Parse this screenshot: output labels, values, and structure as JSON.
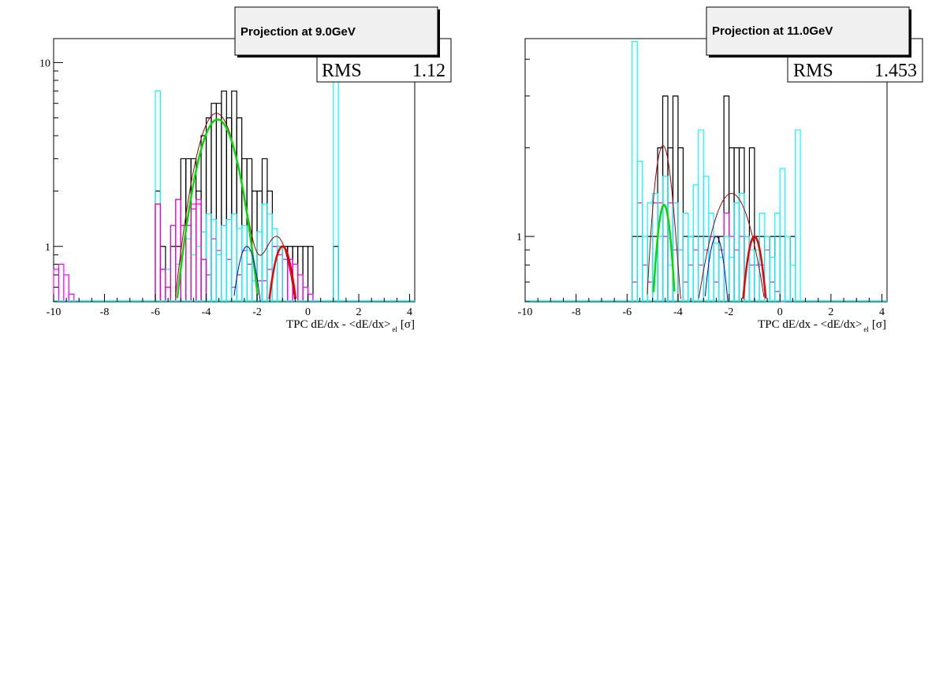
{
  "chart_data": [
    {
      "type": "histogram",
      "title": "Projection at 9.0GeV",
      "xlabel": "TPC dE/dx - <dE/dx>",
      "xlabel_sub": "el",
      "xlabel_unit": "[σ]",
      "xlim": [
        -10,
        4.2
      ],
      "ylim": [
        0.5,
        13.5
      ],
      "yscale": "log",
      "xticks": [
        -10,
        -8,
        -6,
        -4,
        -2,
        0,
        2,
        4
      ],
      "yticks": [
        1,
        10
      ],
      "stats": {
        "label": "RMS",
        "value": "1.12"
      },
      "bin_width": 0.2,
      "series": [
        {
          "color": "#000000",
          "x": [
            -6.0,
            -5.8,
            -5.4,
            -5.2,
            -5.0,
            -4.8,
            -4.6,
            -4.4,
            -4.2,
            -4.0,
            -3.8,
            -3.6,
            -3.4,
            -3.2,
            -3.0,
            -2.8,
            -2.6,
            -2.4,
            -2.2,
            -2.0,
            -1.8,
            -1.6,
            -1.4,
            -1.2,
            -1.0,
            -0.8,
            -0.6,
            -0.4,
            -0.2,
            0.0,
            1.0
          ],
          "y": [
            2,
            1,
            1,
            1,
            3,
            3,
            3,
            2,
            4,
            5,
            6,
            6,
            7,
            5,
            7,
            5,
            3,
            3,
            2,
            2,
            3,
            2,
            1,
            1,
            1,
            1,
            1,
            1,
            1,
            1,
            1
          ]
        },
        {
          "color": "#ff00ff",
          "x": [
            -10.0,
            -9.8,
            -9.6,
            -9.4,
            -6.0,
            -5.8,
            -5.6,
            -5.4,
            -5.2,
            -5.0,
            -4.8,
            -4.6,
            -4.4,
            -4.2,
            -4.0,
            -3.8,
            -3.6,
            -3.4,
            -3.2,
            -3.0,
            -2.8,
            -2.6,
            -2.4,
            -2.2,
            -2.0,
            -1.8,
            -1.6,
            -1.4,
            -1.2,
            -1.0,
            -0.8,
            -0.6,
            -0.4,
            -0.2,
            0.0
          ],
          "y": [
            0.75,
            0.8,
            0.7,
            0.55,
            1.7,
            0.75,
            0.6,
            1.3,
            1.8,
            1.3,
            1.3,
            1.7,
            1.8,
            0.85,
            0.7,
            1.1,
            0.95,
            1.3,
            0.85,
            0.6,
            0.7,
            0.95,
            0.8,
            0.65,
            0.65,
            0.65,
            0.75,
            1.0,
            0.9,
            0.85,
            0.85,
            0.8,
            0.7,
            0.6,
            0.55
          ]
        },
        {
          "color": "#00ffff",
          "x": [
            -6.0,
            -5.6,
            -5.4,
            -5.2,
            -5.0,
            -4.8,
            -4.6,
            -4.4,
            -4.2,
            -4.0,
            -3.8,
            -3.6,
            -3.4,
            -3.2,
            -3.0,
            -2.8,
            -2.6,
            -2.4,
            -2.2,
            -2.0,
            -1.8,
            -1.6,
            -1.4,
            -1.2,
            1.0
          ],
          "y": [
            7,
            0.75,
            1.3,
            0.8,
            1.3,
            1.1,
            0.9,
            1.0,
            1.2,
            1.5,
            1.4,
            0.9,
            1.3,
            1.4,
            1.5,
            1.25,
            1.3,
            0.95,
            0.65,
            1.2,
            1.7,
            1.5,
            1.25,
            1.0,
            13.5
          ]
        },
        {
          "color": "#f000c0",
          "x": [
            -6.0,
            -5.8,
            -5.6,
            -5.4,
            -5.2,
            -5.0,
            -4.8,
            -4.6,
            -4.4,
            -4.2
          ],
          "y": [
            1.7,
            0.75,
            0.6,
            1.3,
            1.8,
            1.3,
            1.3,
            1.6,
            1.7,
            0.85
          ]
        }
      ],
      "fits": [
        {
          "color": "#a00000",
          "components": [
            [
              5.3,
              -3.6,
              0.75
            ],
            [
              1.1,
              -1.2,
              0.55
            ]
          ]
        },
        {
          "color": "#00dd00",
          "components": [
            [
              4.9,
              -3.55,
              0.75
            ]
          ]
        },
        {
          "color": "#0000cc",
          "components": [
            [
              1.0,
              -2.4,
              0.45
            ]
          ]
        },
        {
          "color": "#ee0000",
          "components": [
            [
              1.0,
              -1.0,
              0.45
            ]
          ]
        }
      ]
    },
    {
      "type": "histogram",
      "title": "Projection at 11.0GeV",
      "xlabel": "TPC dE/dx - <dE/dx>",
      "xlabel_sub": "el",
      "xlabel_unit": "[σ]",
      "xlim": [
        -10,
        4.2
      ],
      "ylim": [
        0.6,
        4.7
      ],
      "yscale": "log",
      "xticks": [
        -10,
        -8,
        -6,
        -4,
        -2,
        0,
        2,
        4
      ],
      "yticks": [
        1
      ],
      "stats": {
        "label": "RMS",
        "value": "1.453"
      },
      "bin_width": 0.2,
      "series": [
        {
          "color": "#000000",
          "x": [
            -5.8,
            -5.6,
            -5.2,
            -5.0,
            -4.8,
            -4.6,
            -4.4,
            -4.2,
            -4.0,
            -3.8,
            -3.6,
            -3.4,
            -3.2,
            -3.0,
            -2.8,
            -2.6,
            -2.4,
            -2.2,
            -2.0,
            -1.8,
            -1.6,
            -1.4,
            -1.2,
            -1.0,
            -0.8,
            -0.6,
            -0.4,
            -0.2,
            0.0,
            0.4
          ],
          "y": [
            1,
            1,
            1,
            1,
            2,
            3,
            2,
            3,
            2,
            1,
            1,
            1,
            1,
            1,
            1,
            1,
            1,
            3,
            2,
            2,
            2,
            1,
            2,
            1,
            1,
            1,
            1,
            1,
            1,
            1
          ]
        },
        {
          "color": "#ff00ff",
          "x": [
            -5.8,
            -5.6,
            -5.4,
            -5.2,
            -5.0,
            -4.8,
            -4.6,
            -4.4,
            -4.2,
            -4.0,
            -3.8,
            -3.6,
            -3.4,
            -3.2,
            -3.0,
            -2.8,
            -2.6,
            -2.4,
            -2.2,
            -2.0,
            -1.8,
            -1.6,
            -1.4,
            -1.2,
            -1.0,
            -0.8,
            -0.6,
            -0.4,
            -0.2,
            0.0
          ],
          "y": [
            0.7,
            1.3,
            0.8,
            0.7,
            1.3,
            1.3,
            1.0,
            1.3,
            0.9,
            0.9,
            0.7,
            0.8,
            0.9,
            0.8,
            0.9,
            1.0,
            0.7,
            0.9,
            1.2,
            1.0,
            0.9,
            1.0,
            1.0,
            0.8,
            0.8,
            0.8,
            0.9,
            0.7,
            0.65,
            0.6
          ]
        },
        {
          "color": "#00ffff",
          "x": [
            -5.8,
            -5.6,
            -5.4,
            -5.2,
            -5.0,
            -4.8,
            -4.6,
            -4.4,
            -4.2,
            -4.0,
            -3.8,
            -3.6,
            -3.4,
            -3.2,
            -3.0,
            -2.8,
            -2.6,
            -2.4,
            -2.2,
            -2.0,
            -1.8,
            -1.6,
            -1.4,
            -1.2,
            -1.0,
            -0.8,
            -0.6,
            -0.4,
            -0.2,
            0.0,
            0.2,
            0.4,
            0.6
          ],
          "y": [
            4.6,
            1.8,
            1.0,
            1.3,
            1.4,
            1.0,
            1.6,
            0.8,
            1.3,
            0.9,
            1.2,
            1.0,
            1.5,
            2.3,
            1.6,
            1.2,
            0.95,
            0.85,
            1.0,
            0.85,
            1.3,
            1.4,
            1.0,
            0.9,
            0.9,
            1.2,
            1.0,
            0.85,
            1.2,
            1.7,
            1.0,
            0.8,
            2.3
          ]
        }
      ],
      "fits": [
        {
          "color": "#a00000",
          "components": [
            [
              2.0,
              -4.6,
              0.4
            ],
            [
              1.4,
              -1.9,
              1.0
            ]
          ]
        },
        {
          "color": "#00dd00",
          "components": [
            [
              1.28,
              -4.55,
              0.35
            ]
          ]
        },
        {
          "color": "#0000cc",
          "components": [
            [
              1.0,
              -2.5,
              0.45
            ]
          ]
        },
        {
          "color": "#ee0000",
          "components": [
            [
              1.0,
              -1.0,
              0.45
            ]
          ]
        }
      ]
    }
  ]
}
